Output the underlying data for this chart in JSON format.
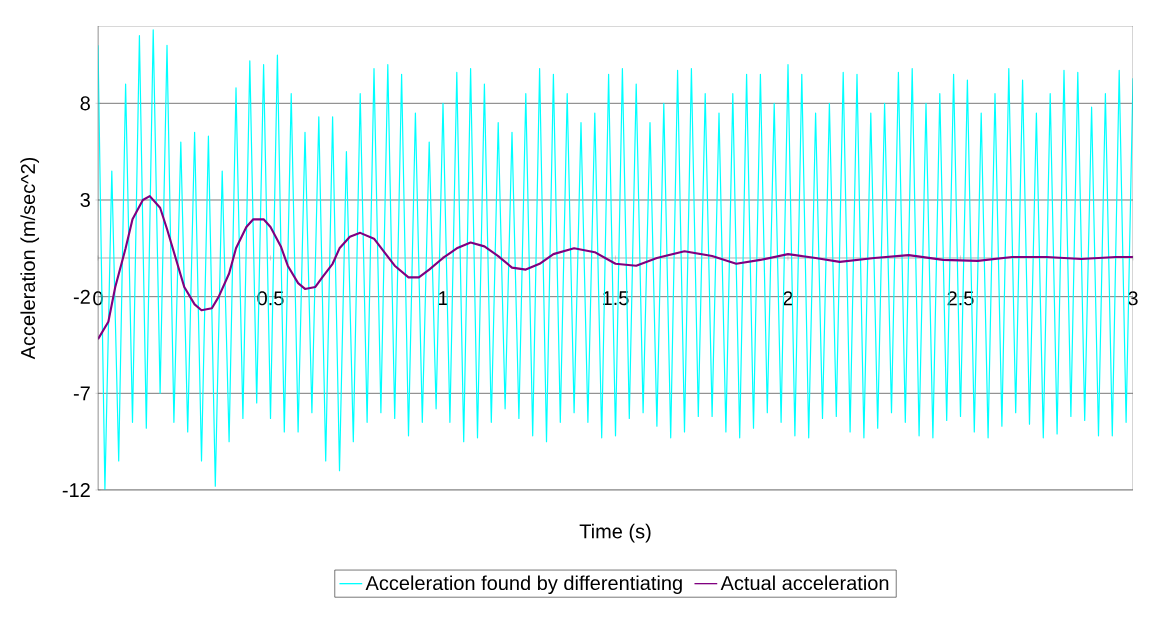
{
  "chart_data": {
    "type": "line",
    "xlabel": "Time (s)",
    "ylabel": "Acceleration (m/sec^2)",
    "xlim": [
      0,
      3
    ],
    "ylim": [
      -12,
      12
    ],
    "xticks": [
      0,
      0.5,
      1,
      1.5,
      2,
      2.5,
      3
    ],
    "yticks": [
      -12,
      -7,
      -2,
      3,
      8
    ],
    "grid": "y",
    "legend": "bottom",
    "marker": "none",
    "line_style": "solid",
    "series": [
      {
        "name": "Acceleration found by differentiating",
        "color": "#00ffff",
        "x": [
          0,
          0.02,
          0.04,
          0.06,
          0.08,
          0.1,
          0.12,
          0.14,
          0.16,
          0.18,
          0.2,
          0.22,
          0.24,
          0.26,
          0.28,
          0.3,
          0.32,
          0.34,
          0.36,
          0.38,
          0.4,
          0.42,
          0.44,
          0.46,
          0.48,
          0.5,
          0.52,
          0.54,
          0.56,
          0.58,
          0.6,
          0.62,
          0.64,
          0.66,
          0.68,
          0.7,
          0.72,
          0.74,
          0.76,
          0.78,
          0.8,
          0.82,
          0.84,
          0.86,
          0.88,
          0.9,
          0.92,
          0.94,
          0.96,
          0.98,
          1,
          1.02,
          1.04,
          1.06,
          1.08,
          1.1,
          1.12,
          1.14,
          1.16,
          1.18,
          1.2,
          1.22,
          1.24,
          1.26,
          1.28,
          1.3,
          1.32,
          1.34,
          1.36,
          1.38,
          1.4,
          1.42,
          1.44,
          1.46,
          1.48,
          1.5,
          1.52,
          1.54,
          1.56,
          1.58,
          1.6,
          1.62,
          1.64,
          1.66,
          1.68,
          1.7,
          1.72,
          1.74,
          1.76,
          1.78,
          1.8,
          1.82,
          1.84,
          1.86,
          1.88,
          1.9,
          1.92,
          1.94,
          1.96,
          1.98,
          2,
          2.02,
          2.04,
          2.06,
          2.08,
          2.1,
          2.12,
          2.14,
          2.16,
          2.18,
          2.2,
          2.22,
          2.24,
          2.26,
          2.28,
          2.3,
          2.32,
          2.34,
          2.36,
          2.38,
          2.4,
          2.42,
          2.44,
          2.46,
          2.48,
          2.5,
          2.52,
          2.54,
          2.56,
          2.58,
          2.6,
          2.62,
          2.64,
          2.66,
          2.68,
          2.7,
          2.72,
          2.74,
          2.76,
          2.78,
          2.8,
          2.82,
          2.84,
          2.86,
          2.88,
          2.9,
          2.92,
          2.94,
          2.96,
          2.98,
          3
        ],
        "values": [
          11,
          -12,
          4.5,
          -10.5,
          9,
          -8.5,
          11.5,
          -8.8,
          11.8,
          -7,
          11,
          -8.5,
          6,
          -9,
          6.5,
          -10.5,
          6.3,
          -11.8,
          4.5,
          -9.5,
          8.8,
          -8.3,
          10.2,
          -7.5,
          10,
          -8.3,
          10.5,
          -9,
          8.5,
          -9,
          6.5,
          -8,
          7.3,
          -10.5,
          7.3,
          -11,
          5.5,
          -9.5,
          8.5,
          -8.5,
          9.8,
          -8,
          10,
          -8.3,
          9.5,
          -9.2,
          7.5,
          -8.5,
          6,
          -7.8,
          8,
          -8.5,
          9.6,
          -9.5,
          9.8,
          -9.3,
          9,
          -8.5,
          7,
          -7.8,
          6.5,
          -8.3,
          8.5,
          -9.2,
          9.8,
          -9.5,
          9.5,
          -8.5,
          8.5,
          -8,
          7,
          -8.5,
          7.5,
          -9.3,
          9.5,
          -9.2,
          9.8,
          -8.3,
          9,
          -8,
          7,
          -8.7,
          8,
          -9.3,
          9.7,
          -9,
          9.8,
          -8.2,
          8.5,
          -8.2,
          7.5,
          -9,
          8.5,
          -9.3,
          9.5,
          -8.8,
          9.5,
          -8,
          8,
          -8.5,
          10,
          -9.2,
          9.5,
          -9.3,
          7.5,
          -8.3,
          8,
          -8.2,
          9.6,
          -9,
          9.5,
          -9.3,
          7.5,
          -8.8,
          8,
          -8,
          9.6,
          -8.5,
          9.8,
          -9.2,
          8,
          -9.3,
          8.5,
          -8.4,
          9.5,
          -8.2,
          9.2,
          -9,
          7.5,
          -9.3,
          8.5,
          -8.7,
          9.8,
          -8,
          9.2,
          -8.6,
          7.5,
          -9.3,
          8.5,
          -9.1,
          9.7,
          -8.2,
          9.6,
          -8.4,
          7.8,
          -9.2,
          8.5,
          -9.2,
          9.7,
          -8.5,
          9.3
        ]
      },
      {
        "name": "Actual acceleration",
        "color": "#800080",
        "x": [
          0,
          0.03,
          0.05,
          0.08,
          0.1,
          0.13,
          0.15,
          0.18,
          0.2,
          0.23,
          0.25,
          0.28,
          0.3,
          0.33,
          0.35,
          0.38,
          0.4,
          0.43,
          0.45,
          0.48,
          0.5,
          0.53,
          0.55,
          0.58,
          0.6,
          0.63,
          0.65,
          0.68,
          0.7,
          0.73,
          0.76,
          0.8,
          0.83,
          0.86,
          0.9,
          0.93,
          0.96,
          1,
          1.04,
          1.08,
          1.12,
          1.16,
          1.2,
          1.24,
          1.28,
          1.32,
          1.38,
          1.44,
          1.5,
          1.56,
          1.62,
          1.7,
          1.78,
          1.85,
          1.92,
          2,
          2.08,
          2.15,
          2.25,
          2.35,
          2.45,
          2.55,
          2.65,
          2.75,
          2.85,
          2.95,
          3
        ],
        "values": [
          -4.2,
          -3.3,
          -1.5,
          0.5,
          2,
          3,
          3.2,
          2.6,
          1.5,
          -0.3,
          -1.5,
          -2.4,
          -2.7,
          -2.6,
          -2,
          -0.8,
          0.5,
          1.6,
          2,
          2,
          1.6,
          0.6,
          -0.4,
          -1.3,
          -1.6,
          -1.5,
          -1,
          -0.3,
          0.5,
          1.1,
          1.3,
          1,
          0.3,
          -0.4,
          -1,
          -1,
          -0.6,
          0,
          0.5,
          0.8,
          0.6,
          0.1,
          -0.5,
          -0.6,
          -0.3,
          0.2,
          0.5,
          0.3,
          -0.3,
          -0.4,
          0,
          0.35,
          0.1,
          -0.3,
          -0.1,
          0.2,
          0,
          -0.2,
          0,
          0.15,
          -0.1,
          -0.15,
          0.05,
          0.05,
          -0.05,
          0.05,
          0.05
        ]
      }
    ]
  }
}
